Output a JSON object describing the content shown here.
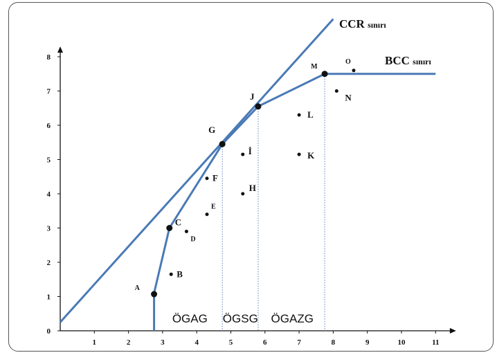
{
  "chart_data": {
    "type": "line",
    "xlim": [
      0,
      11.6
    ],
    "ylim": [
      0,
      8.3
    ],
    "x_ticks": [
      1,
      2,
      3,
      4,
      5,
      6,
      7,
      8,
      9,
      10,
      11
    ],
    "y_ticks": [
      0,
      1,
      2,
      3,
      4,
      5,
      6,
      7,
      8
    ],
    "grid": false,
    "series": [
      {
        "name": "CCR sınırı",
        "label_main": "CCR",
        "label_sub": "sınırı",
        "color": "#4a7ab5",
        "points": [
          [
            0,
            0.25
          ],
          [
            8.0,
            9.1
          ]
        ]
      },
      {
        "name": "BCC sınırı",
        "label_main": "BCC",
        "label_sub": "sınırı",
        "color": "#4a7ab5",
        "points": [
          [
            2.75,
            0
          ],
          [
            2.75,
            1.1
          ],
          [
            3.2,
            3.0
          ],
          [
            4.75,
            5.45
          ],
          [
            5.8,
            6.55
          ],
          [
            7.75,
            7.5
          ],
          [
            11.0,
            7.5
          ]
        ]
      }
    ],
    "points": [
      {
        "label": "A",
        "x": 2.75,
        "y": 1.07,
        "frontier": true
      },
      {
        "label": "B",
        "x": 3.25,
        "y": 1.65,
        "frontier": false
      },
      {
        "label": "C",
        "x": 3.2,
        "y": 3.0,
        "frontier": true
      },
      {
        "label": "D",
        "x": 3.7,
        "y": 2.9,
        "frontier": false
      },
      {
        "label": "E",
        "x": 4.3,
        "y": 3.4,
        "frontier": false
      },
      {
        "label": "F",
        "x": 4.3,
        "y": 4.45,
        "frontier": false
      },
      {
        "label": "G",
        "x": 4.75,
        "y": 5.45,
        "frontier": true
      },
      {
        "label": "H",
        "x": 5.35,
        "y": 4.0,
        "frontier": false
      },
      {
        "label": "İ",
        "x": 5.35,
        "y": 5.15,
        "frontier": false
      },
      {
        "label": "J",
        "x": 5.8,
        "y": 6.55,
        "frontier": true
      },
      {
        "label": "K",
        "x": 7.0,
        "y": 5.15,
        "frontier": false
      },
      {
        "label": "L",
        "x": 7.0,
        "y": 6.3,
        "frontier": false
      },
      {
        "label": "M",
        "x": 7.75,
        "y": 7.5,
        "frontier": true
      },
      {
        "label": "N",
        "x": 8.1,
        "y": 7.0,
        "frontier": false
      },
      {
        "label": "O",
        "x": 8.6,
        "y": 7.6,
        "frontier": false
      }
    ],
    "dividers": [
      {
        "x": 4.75,
        "y_top": 5.45
      },
      {
        "x": 5.8,
        "y_top": 6.55
      },
      {
        "x": 7.75,
        "y_top": 7.5
      }
    ],
    "regions": [
      {
        "label": "ÖGAG",
        "x_center": 3.8
      },
      {
        "label": "ÖGSG",
        "x_center": 5.28
      },
      {
        "label": "ÖGAZG",
        "x_center": 6.8
      }
    ]
  }
}
